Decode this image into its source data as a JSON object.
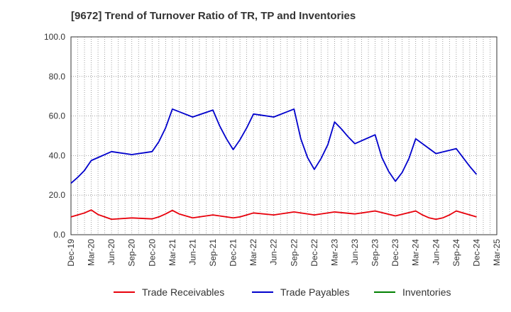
{
  "chart_data": {
    "type": "line",
    "title": "[9672]  Trend of Turnover Ratio of TR, TP and Inventories",
    "xlabel": "",
    "ylabel": "",
    "ylim": [
      0,
      100
    ],
    "y_ticks": [
      "0.0",
      "20.0",
      "40.0",
      "60.0",
      "80.0",
      "100.0"
    ],
    "x_tick_labels": [
      "Dec-19",
      "Mar-20",
      "Jun-20",
      "Sep-20",
      "Dec-20",
      "Mar-21",
      "Jun-21",
      "Sep-21",
      "Dec-21",
      "Mar-22",
      "Jun-22",
      "Sep-22",
      "Dec-22",
      "Mar-23",
      "Jun-23",
      "Sep-23",
      "Dec-23",
      "Mar-24",
      "Jun-24",
      "Sep-24",
      "Dec-24",
      "Mar-25"
    ],
    "x_months": [
      "Dec-19",
      "Jan-20",
      "Feb-20",
      "Mar-20",
      "Apr-20",
      "May-20",
      "Jun-20",
      "Jul-20",
      "Aug-20",
      "Sep-20",
      "Oct-20",
      "Nov-20",
      "Dec-20",
      "Jan-21",
      "Feb-21",
      "Mar-21",
      "Apr-21",
      "May-21",
      "Jun-21",
      "Jul-21",
      "Aug-21",
      "Sep-21",
      "Oct-21",
      "Nov-21",
      "Dec-21",
      "Jan-22",
      "Feb-22",
      "Mar-22",
      "Apr-22",
      "May-22",
      "Jun-22",
      "Jul-22",
      "Aug-22",
      "Sep-22",
      "Oct-22",
      "Nov-22",
      "Dec-22",
      "Jan-23",
      "Feb-23",
      "Mar-23",
      "Apr-23",
      "May-23",
      "Jun-23",
      "Jul-23",
      "Aug-23",
      "Sep-23",
      "Oct-23",
      "Nov-23",
      "Dec-23",
      "Jan-24",
      "Feb-24",
      "Mar-24",
      "Apr-24",
      "May-24",
      "Jun-24",
      "Jul-24",
      "Aug-24",
      "Sep-24",
      "Oct-24",
      "Nov-24",
      "Dec-24",
      "Jan-25",
      "Feb-25",
      "Mar-25"
    ],
    "grid": true,
    "legend_position": "bottom",
    "series": [
      {
        "name": "Trade Receivables",
        "color": "#e8000b",
        "points": [
          [
            "Dec-19",
            9.0
          ],
          [
            "Jan-20",
            10.0
          ],
          [
            "Feb-20",
            11.0
          ],
          [
            "Mar-20",
            12.5
          ],
          [
            "Apr-20",
            10.2
          ],
          [
            "May-20",
            9.0
          ],
          [
            "Jun-20",
            7.8
          ],
          [
            "Sep-20",
            8.5
          ],
          [
            "Dec-20",
            8.0
          ],
          [
            "Jan-21",
            9.0
          ],
          [
            "Feb-21",
            10.5
          ],
          [
            "Mar-21",
            12.3
          ],
          [
            "Apr-21",
            10.5
          ],
          [
            "May-21",
            9.5
          ],
          [
            "Jun-21",
            8.5
          ],
          [
            "Sep-21",
            10.0
          ],
          [
            "Dec-21",
            8.5
          ],
          [
            "Jan-22",
            9.0
          ],
          [
            "Feb-22",
            10.0
          ],
          [
            "Mar-22",
            11.0
          ],
          [
            "Jun-22",
            10.0
          ],
          [
            "Sep-22",
            11.5
          ],
          [
            "Dec-22",
            10.0
          ],
          [
            "Mar-23",
            11.5
          ],
          [
            "Jun-23",
            10.5
          ],
          [
            "Sep-23",
            12.0
          ],
          [
            "Dec-23",
            9.5
          ],
          [
            "Mar-24",
            12.0
          ],
          [
            "Apr-24",
            10.0
          ],
          [
            "May-24",
            8.5
          ],
          [
            "Jun-24",
            7.8
          ],
          [
            "Jul-24",
            8.5
          ],
          [
            "Aug-24",
            10.0
          ],
          [
            "Sep-24",
            12.0
          ],
          [
            "Dec-24",
            9.0
          ]
        ]
      },
      {
        "name": "Trade Payables",
        "color": "#0000cc",
        "points": [
          [
            "Dec-19",
            26.0
          ],
          [
            "Jan-20",
            29.0
          ],
          [
            "Feb-20",
            32.5
          ],
          [
            "Mar-20",
            37.5
          ],
          [
            "Jun-20",
            42.0
          ],
          [
            "Sep-20",
            40.5
          ],
          [
            "Dec-20",
            42.0
          ],
          [
            "Jan-21",
            47.0
          ],
          [
            "Feb-21",
            54.0
          ],
          [
            "Mar-21",
            63.5
          ],
          [
            "Jun-21",
            59.5
          ],
          [
            "Sep-21",
            63.0
          ],
          [
            "Oct-21",
            55.0
          ],
          [
            "Nov-21",
            48.5
          ],
          [
            "Dec-21",
            43.0
          ],
          [
            "Jan-22",
            48.0
          ],
          [
            "Feb-22",
            54.0
          ],
          [
            "Mar-22",
            61.0
          ],
          [
            "Jun-22",
            59.5
          ],
          [
            "Sep-22",
            63.5
          ],
          [
            "Oct-22",
            48.5
          ],
          [
            "Nov-22",
            39.0
          ],
          [
            "Dec-22",
            33.0
          ],
          [
            "Jan-23",
            38.5
          ],
          [
            "Feb-23",
            45.5
          ],
          [
            "Mar-23",
            57.0
          ],
          [
            "Apr-23",
            53.5
          ],
          [
            "May-23",
            49.5
          ],
          [
            "Jun-23",
            46.0
          ],
          [
            "Sep-23",
            50.5
          ],
          [
            "Oct-23",
            39.0
          ],
          [
            "Nov-23",
            32.0
          ],
          [
            "Dec-23",
            27.0
          ],
          [
            "Jan-24",
            31.5
          ],
          [
            "Feb-24",
            38.5
          ],
          [
            "Mar-24",
            48.5
          ],
          [
            "Apr-24",
            46.0
          ],
          [
            "May-24",
            43.5
          ],
          [
            "Jun-24",
            41.0
          ],
          [
            "Sep-24",
            43.5
          ],
          [
            "Oct-24",
            39.0
          ],
          [
            "Nov-24",
            34.5
          ],
          [
            "Dec-24",
            30.5
          ]
        ]
      },
      {
        "name": "Inventories",
        "color": "#008000",
        "points": []
      }
    ]
  }
}
